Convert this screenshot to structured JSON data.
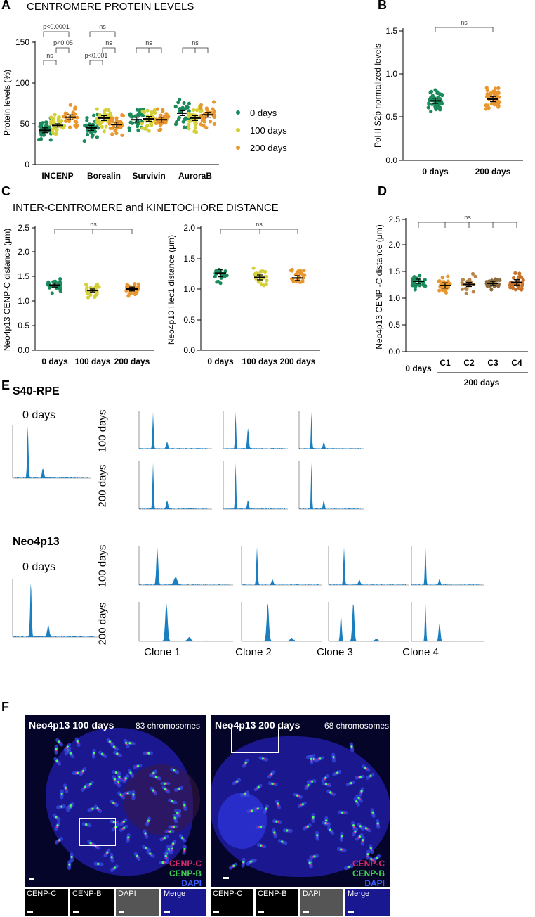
{
  "panels": {
    "a": "A",
    "b": "B",
    "c": "C",
    "d": "D",
    "e": "E",
    "f": "F"
  },
  "panel_a": {
    "title": "CENTROMERE PROTEIN LEVELS",
    "ylabel": "Protein levels (%)",
    "yticks": [
      "0",
      "50",
      "100",
      "150"
    ],
    "categories": [
      "INCENP",
      "Borealin",
      "Survivin",
      "AuroraB"
    ],
    "legend": [
      "0 days",
      "100 days",
      "200 days"
    ],
    "sig": [
      "p<0.0001",
      "ns",
      "p<0.05",
      "ns",
      "p<0.001",
      "ns",
      "ns",
      "ns"
    ]
  },
  "panel_b": {
    "ylabel": "Pol II S2p normalized levels",
    "yticks": [
      "0.0",
      "0.5",
      "1.0",
      "1.5"
    ],
    "categories": [
      "0 days",
      "200 days"
    ],
    "sig": "ns"
  },
  "panel_c": {
    "title": "INTER-CENTROMERE and KINETOCHORE DISTANCE",
    "left_ylabel": "Neo4p13 CENP-C distance (μm)",
    "right_ylabel": "Neo4p13 Hec1 distance (μm)",
    "yticks": [
      "0.0",
      "0.5",
      "1.0",
      "1.5",
      "2.0",
      "2.5"
    ],
    "categories": [
      "0 days",
      "100 days",
      "200 days"
    ],
    "sig": "ns"
  },
  "panel_d": {
    "ylabel": "Neo4p13 CENP -C distance (μm)",
    "yticks": [
      "0.0",
      "0.5",
      "1.0",
      "1.5",
      "2.0",
      "2.5"
    ],
    "categories": [
      "0 days",
      "C1",
      "C2",
      "C3",
      "C4"
    ],
    "group_label": "200 days",
    "sig": "ns"
  },
  "panel_e": {
    "s40_title": "S40-RPE",
    "neo_title": "Neo4p13",
    "zero_label": "0 days",
    "row_100": "100 days",
    "row_200": "200 days",
    "clones": [
      "Clone 1",
      "Clone 2",
      "Clone 3",
      "Clone 4"
    ]
  },
  "panel_f": {
    "left_title": "Neo4p13 100 days",
    "left_count": "83 chromosomes",
    "right_title": "Neo4p13 200 days",
    "right_count": "68 chromosomes",
    "legend": [
      "CENP-C",
      "CENP-B",
      "DAPI"
    ],
    "tiles": [
      "CENP-C",
      "CENP-B",
      "DAPI",
      "Merge"
    ]
  },
  "colors": {
    "green": "#1a8a5a",
    "yellow": "#d4d03a",
    "orange": "#e8962e",
    "flow_blue": "#1a7fc1",
    "legend_red": "#d62a6a",
    "legend_green": "#3fcf4f",
    "legend_blue": "#3b5cff"
  },
  "chart_data": [
    {
      "type": "scatter",
      "panel": "A",
      "title": "CENTROMERE PROTEIN LEVELS",
      "ylabel": "Protein levels (%)",
      "ylim": [
        0,
        150
      ],
      "categories": [
        "INCENP",
        "Borealin",
        "Survivin",
        "AuroraB"
      ],
      "series": [
        {
          "name": "0 days",
          "means": [
            42,
            45,
            55,
            63
          ],
          "sems": [
            3,
            3,
            3,
            3
          ]
        },
        {
          "name": "100 days",
          "means": [
            48,
            57,
            56,
            57
          ],
          "sems": [
            2,
            3,
            3,
            3
          ]
        },
        {
          "name": "200 days",
          "means": [
            58,
            49,
            55,
            61
          ],
          "sems": [
            3,
            3,
            3,
            3
          ]
        }
      ]
    },
    {
      "type": "scatter",
      "panel": "B",
      "ylabel": "Pol II S2p normalized levels",
      "ylim": [
        0,
        1.5
      ],
      "categories": [
        "0 days",
        "200 days"
      ],
      "means": [
        0.69,
        0.71
      ],
      "sems": [
        0.03,
        0.03
      ]
    },
    {
      "type": "scatter",
      "panel": "C-left",
      "ylabel": "Neo4p13 CENP-C distance (μm)",
      "ylim": [
        0,
        2.5
      ],
      "categories": [
        "0 days",
        "100 days",
        "200 days"
      ],
      "means": [
        1.33,
        1.22,
        1.25
      ],
      "sems": [
        0.04,
        0.03,
        0.04
      ]
    },
    {
      "type": "scatter",
      "panel": "C-right",
      "ylabel": "Neo4p13 Hec1 distance (μm)",
      "ylim": [
        0,
        2.0
      ],
      "categories": [
        "0 days",
        "100 days",
        "200 days"
      ],
      "means": [
        1.26,
        1.19,
        1.18
      ],
      "sems": [
        0.06,
        0.04,
        0.04
      ]
    },
    {
      "type": "scatter",
      "panel": "D",
      "ylabel": "Neo4p13 CENP -C distance (μm)",
      "ylim": [
        0,
        2.5
      ],
      "categories": [
        "0 days",
        "C1",
        "C2",
        "C3",
        "C4"
      ],
      "means": [
        1.33,
        1.25,
        1.27,
        1.29,
        1.31
      ],
      "sems": [
        0.04,
        0.05,
        0.04,
        0.04,
        0.05
      ]
    }
  ]
}
